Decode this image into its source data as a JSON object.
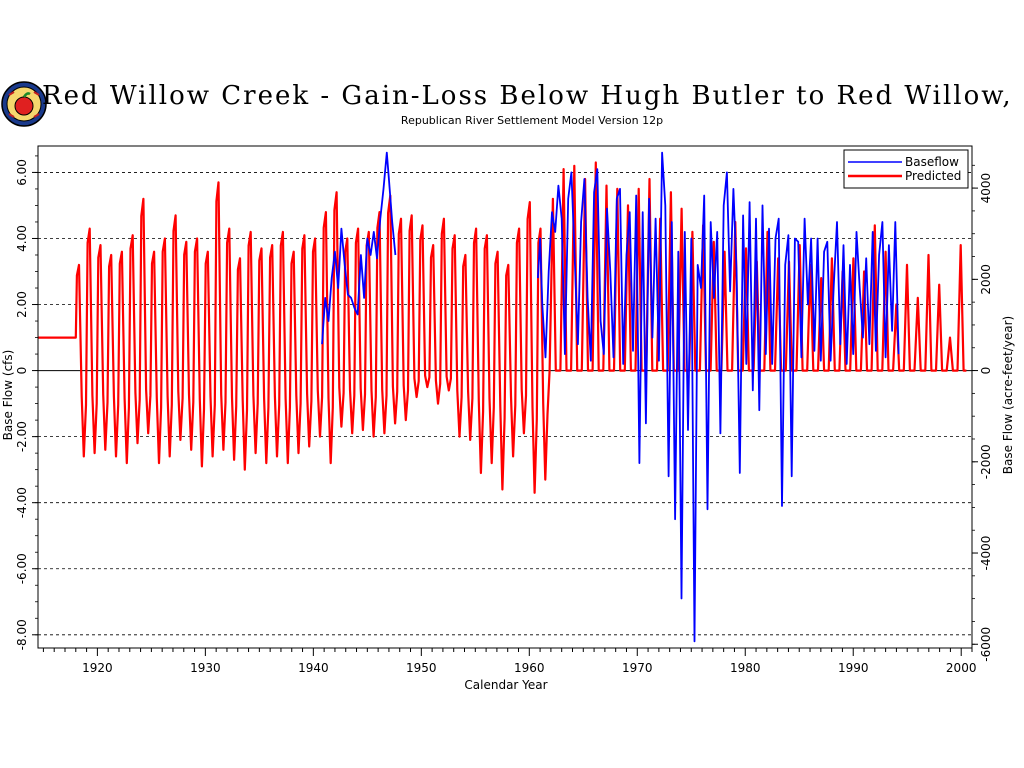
{
  "chart_data": {
    "type": "line",
    "title": "Red Willow Creek - Gain-Loss Below Hugh Butler to Red Willow, NE",
    "subtitle": "Republican River Settlement Model Version 12p",
    "xlabel": "Calendar Year",
    "ylabel": "Base Flow (cfs)",
    "y2label": "Base Flow (acre-feet/year)",
    "xlim": [
      1914.5,
      2001
    ],
    "ylim": [
      -8.4,
      6.8
    ],
    "y2lim": [
      -6082,
      4923
    ],
    "x_ticks": [
      1920,
      1930,
      1940,
      1950,
      1960,
      1970,
      1980,
      1990,
      2000
    ],
    "y_ticks": [
      6.0,
      4.0,
      2.0,
      0,
      -2.0,
      -4.0,
      -6.0,
      -8.0
    ],
    "y_tick_labels": [
      "6.00",
      "4.00",
      "2.00",
      "0",
      "-2.00",
      "-4.00",
      "-6.00",
      "-8.00"
    ],
    "y2_ticks": [
      4000,
      2000,
      0,
      -2000,
      -4000,
      -6000
    ],
    "y2_tick_labels": [
      "4000",
      "2000",
      "0",
      "-2000",
      "-4000",
      "-6000"
    ],
    "grid": "horizontal dashed",
    "legend_position": "top-right",
    "series": [
      {
        "name": "Baseflow",
        "color": "#0000ff",
        "segments": [
          {
            "x": [
              1940.8,
              1941.1,
              1941.4,
              1941.7,
              1942.0,
              1942.3,
              1942.6,
              1942.9,
              1943.2,
              1943.5,
              1943.8,
              1944.1,
              1944.4,
              1944.7,
              1945.0,
              1945.3,
              1945.6,
              1945.9,
              1946.2,
              1946.5,
              1946.8,
              1947.0,
              1947.3,
              1947.6
            ],
            "y": [
              0.8,
              2.2,
              1.5,
              2.8,
              3.6,
              2.5,
              4.3,
              3.2,
              2.3,
              2.2,
              1.9,
              1.7,
              3.5,
              2.2,
              4.0,
              3.5,
              4.2,
              3.4,
              4.6,
              5.5,
              6.6,
              5.8,
              4.5,
              3.5
            ]
          },
          {
            "x": [
              1960.8,
              1961.0,
              1961.2,
              1961.5,
              1961.8,
              1962.1,
              1962.4,
              1962.7,
              1963.0,
              1963.3,
              1963.6,
              1963.9,
              1964.2,
              1964.5,
              1964.8,
              1965.1,
              1965.4,
              1965.7,
              1966.0,
              1966.3,
              1966.6,
              1966.9,
              1967.2,
              1967.5,
              1967.8,
              1968.1,
              1968.4,
              1968.7,
              1969.0,
              1969.3,
              1969.6,
              1969.9,
              1970.2,
              1970.5,
              1970.8,
              1971.1,
              1971.4,
              1971.7,
              1972.0,
              1972.3,
              1972.6,
              1972.9,
              1973.2,
              1973.5,
              1973.8,
              1974.1,
              1974.4,
              1974.7,
              1975.0,
              1975.3,
              1975.6,
              1975.9,
              1976.2,
              1976.5,
              1976.8,
              1977.1,
              1977.4,
              1977.7,
              1978.0,
              1978.3,
              1978.6,
              1978.9,
              1979.2,
              1979.5,
              1979.8,
              1980.1,
              1980.4,
              1980.7,
              1981.0,
              1981.3,
              1981.6,
              1981.9,
              1982.2,
              1982.5,
              1982.8,
              1983.1,
              1983.4,
              1983.7,
              1984.0,
              1984.3,
              1984.6,
              1984.9,
              1985.2,
              1985.5,
              1985.8,
              1986.1,
              1986.4,
              1986.7,
              1987.0,
              1987.3,
              1987.6,
              1987.9,
              1988.2,
              1988.5,
              1988.8,
              1989.1,
              1989.4,
              1989.7,
              1990.0,
              1990.3,
              1990.6,
              1990.9,
              1991.2,
              1991.5,
              1991.8,
              1992.1,
              1992.4,
              1992.7,
              1993.0,
              1993.3,
              1993.6,
              1993.9,
              1994.2
            ],
            "y": [
              2.8,
              4.0,
              2.0,
              0.4,
              3.0,
              4.8,
              4.2,
              5.6,
              4.6,
              0.5,
              5.2,
              6.0,
              3.5,
              0.8,
              4.5,
              5.8,
              2.2,
              0.3,
              5.4,
              6.1,
              1.5,
              0.5,
              4.9,
              3.0,
              0.4,
              5.2,
              5.5,
              0.2,
              3.5,
              4.8,
              0.6,
              5.3,
              -2.8,
              4.8,
              -1.6,
              5.2,
              1.0,
              4.6,
              0.3,
              6.6,
              5.0,
              -3.2,
              4.5,
              -4.5,
              3.6,
              -6.9,
              4.2,
              -1.8,
              4.0,
              -8.2,
              3.2,
              2.5,
              5.3,
              -4.2,
              4.5,
              2.2,
              4.2,
              -1.9,
              5.0,
              6.0,
              2.4,
              5.5,
              3.0,
              -3.1,
              4.7,
              0.2,
              5.1,
              -0.6,
              4.6,
              -1.2,
              5.0,
              0.5,
              4.3,
              0.2,
              4.0,
              4.6,
              -4.1,
              3.2,
              4.1,
              -3.2,
              4.0,
              3.9,
              0.4,
              4.6,
              2.0,
              4.0,
              0.6,
              4.0,
              0.3,
              3.6,
              3.9,
              0.3,
              2.6,
              4.5,
              0.8,
              3.8,
              0.2,
              3.2,
              0.5,
              4.2,
              2.5,
              1.0,
              3.4,
              0.8,
              4.2,
              0.6,
              3.5,
              4.5,
              0.4,
              3.8,
              1.2,
              4.5,
              0.5
            ]
          }
        ]
      },
      {
        "name": "Predicted",
        "color": "#ff0000",
        "baseline_start": [
          1914.5,
          1918.0
        ],
        "baseline_value": 1.0,
        "cycle_start": 1918.0,
        "cycle_end": 2000.5,
        "annual_peaks": [
          3.2,
          4.3,
          3.8,
          3.5,
          3.6,
          4.1,
          5.2,
          3.6,
          4.0,
          4.7,
          3.9,
          4.0,
          3.6,
          5.7,
          4.3,
          3.4,
          4.2,
          3.7,
          3.8,
          4.2,
          3.6,
          4.1,
          4.0,
          4.8,
          5.4,
          4.0,
          4.3,
          4.2,
          4.8,
          5.3,
          4.6,
          4.7,
          4.4,
          3.8,
          4.6,
          4.1,
          3.5,
          4.3,
          4.1,
          3.6,
          3.2,
          4.3,
          5.1,
          4.3,
          5.2,
          6.1,
          6.2,
          5.8,
          6.3,
          5.6,
          5.5,
          5.0,
          5.5,
          5.8,
          4.6,
          5.4,
          4.9,
          4.2,
          4.4,
          3.9,
          3.6,
          4.5,
          3.7,
          3.3,
          4.2,
          3.4,
          3.3,
          3.8,
          3.2,
          2.8,
          3.4,
          3.0,
          3.4,
          3.0,
          4.4,
          3.6,
          2.0,
          3.2,
          2.2,
          3.5,
          2.6,
          1.0,
          3.8
        ],
        "annual_troughs": [
          -2.6,
          -2.5,
          -2.4,
          -2.6,
          -2.8,
          -2.2,
          -1.9,
          -2.8,
          -2.6,
          -2.1,
          -2.4,
          -2.9,
          -2.6,
          -2.4,
          -2.7,
          -3.0,
          -2.5,
          -2.8,
          -2.6,
          -2.8,
          -2.5,
          -2.3,
          -2.0,
          -2.8,
          -1.7,
          -1.9,
          -1.8,
          -2.0,
          -1.9,
          -1.6,
          -1.5,
          -0.8,
          -0.5,
          -1.0,
          -0.6,
          -2.0,
          -2.1,
          -3.1,
          -2.8,
          -3.6,
          -2.6,
          -1.9,
          -3.7,
          -3.3,
          0,
          0,
          0,
          0,
          0,
          0,
          0,
          0,
          0,
          0,
          0,
          0,
          0,
          0,
          0,
          0,
          0,
          0,
          0,
          0,
          0,
          0,
          0,
          0,
          0,
          0,
          0,
          0,
          0,
          0,
          0,
          0,
          0,
          0,
          0,
          0,
          0,
          0,
          0
        ]
      }
    ]
  }
}
